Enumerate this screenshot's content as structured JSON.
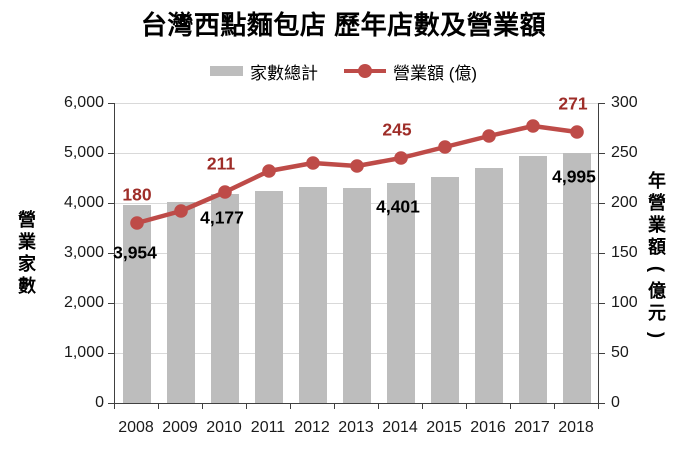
{
  "title": "台灣西點麵包店 歷年店數及營業額",
  "legend": {
    "bar_label": "家數總計",
    "line_label": "營業額 (億)"
  },
  "colors": {
    "bar": "#BDBDBD",
    "line": "#BE4B48",
    "line_label_text": "#9E2D28",
    "bar_label_text": "#000000",
    "gridline": "#D9D9D9",
    "axis": "#404040"
  },
  "chart_data": {
    "type": "bar+line",
    "categories": [
      "2008",
      "2009",
      "2010",
      "2011",
      "2012",
      "2013",
      "2014",
      "2015",
      "2016",
      "2017",
      "2018"
    ],
    "series": [
      {
        "name": "家數總計",
        "type": "bar",
        "axis": "left",
        "color": "#BDBDBD",
        "values": [
          3954,
          4030,
          4177,
          4240,
          4330,
          4300,
          4401,
          4530,
          4710,
          4950,
          4995
        ],
        "data_labels": [
          {
            "index": 0,
            "text": "3,954"
          },
          {
            "index": 2,
            "text": "4,177"
          },
          {
            "index": 6,
            "text": "4,401"
          },
          {
            "index": 10,
            "text": "4,995"
          }
        ],
        "label_color": "#000000"
      },
      {
        "name": "營業額 (億)",
        "type": "line",
        "axis": "right",
        "color": "#BE4B48",
        "values": [
          180,
          192,
          211,
          232,
          240,
          237,
          245,
          256,
          267,
          277,
          271
        ],
        "data_labels": [
          {
            "index": 0,
            "text": "180"
          },
          {
            "index": 2,
            "text": "211"
          },
          {
            "index": 6,
            "text": "245"
          },
          {
            "index": 10,
            "text": "271"
          }
        ],
        "label_color": "#9E2D28"
      }
    ],
    "left_axis": {
      "title": "營業家數",
      "ylim": [
        0,
        6000
      ],
      "tick_step": 1000,
      "tick_labels": [
        "0",
        "1,000",
        "2,000",
        "3,000",
        "4,000",
        "5,000",
        "6,000"
      ]
    },
    "right_axis": {
      "title": "年營業額(億元)",
      "ylim": [
        0,
        300
      ],
      "tick_step": 50,
      "tick_labels": [
        "0",
        "50",
        "100",
        "150",
        "200",
        "250",
        "300"
      ]
    },
    "grid": "horizontal",
    "legend_position": "top"
  }
}
